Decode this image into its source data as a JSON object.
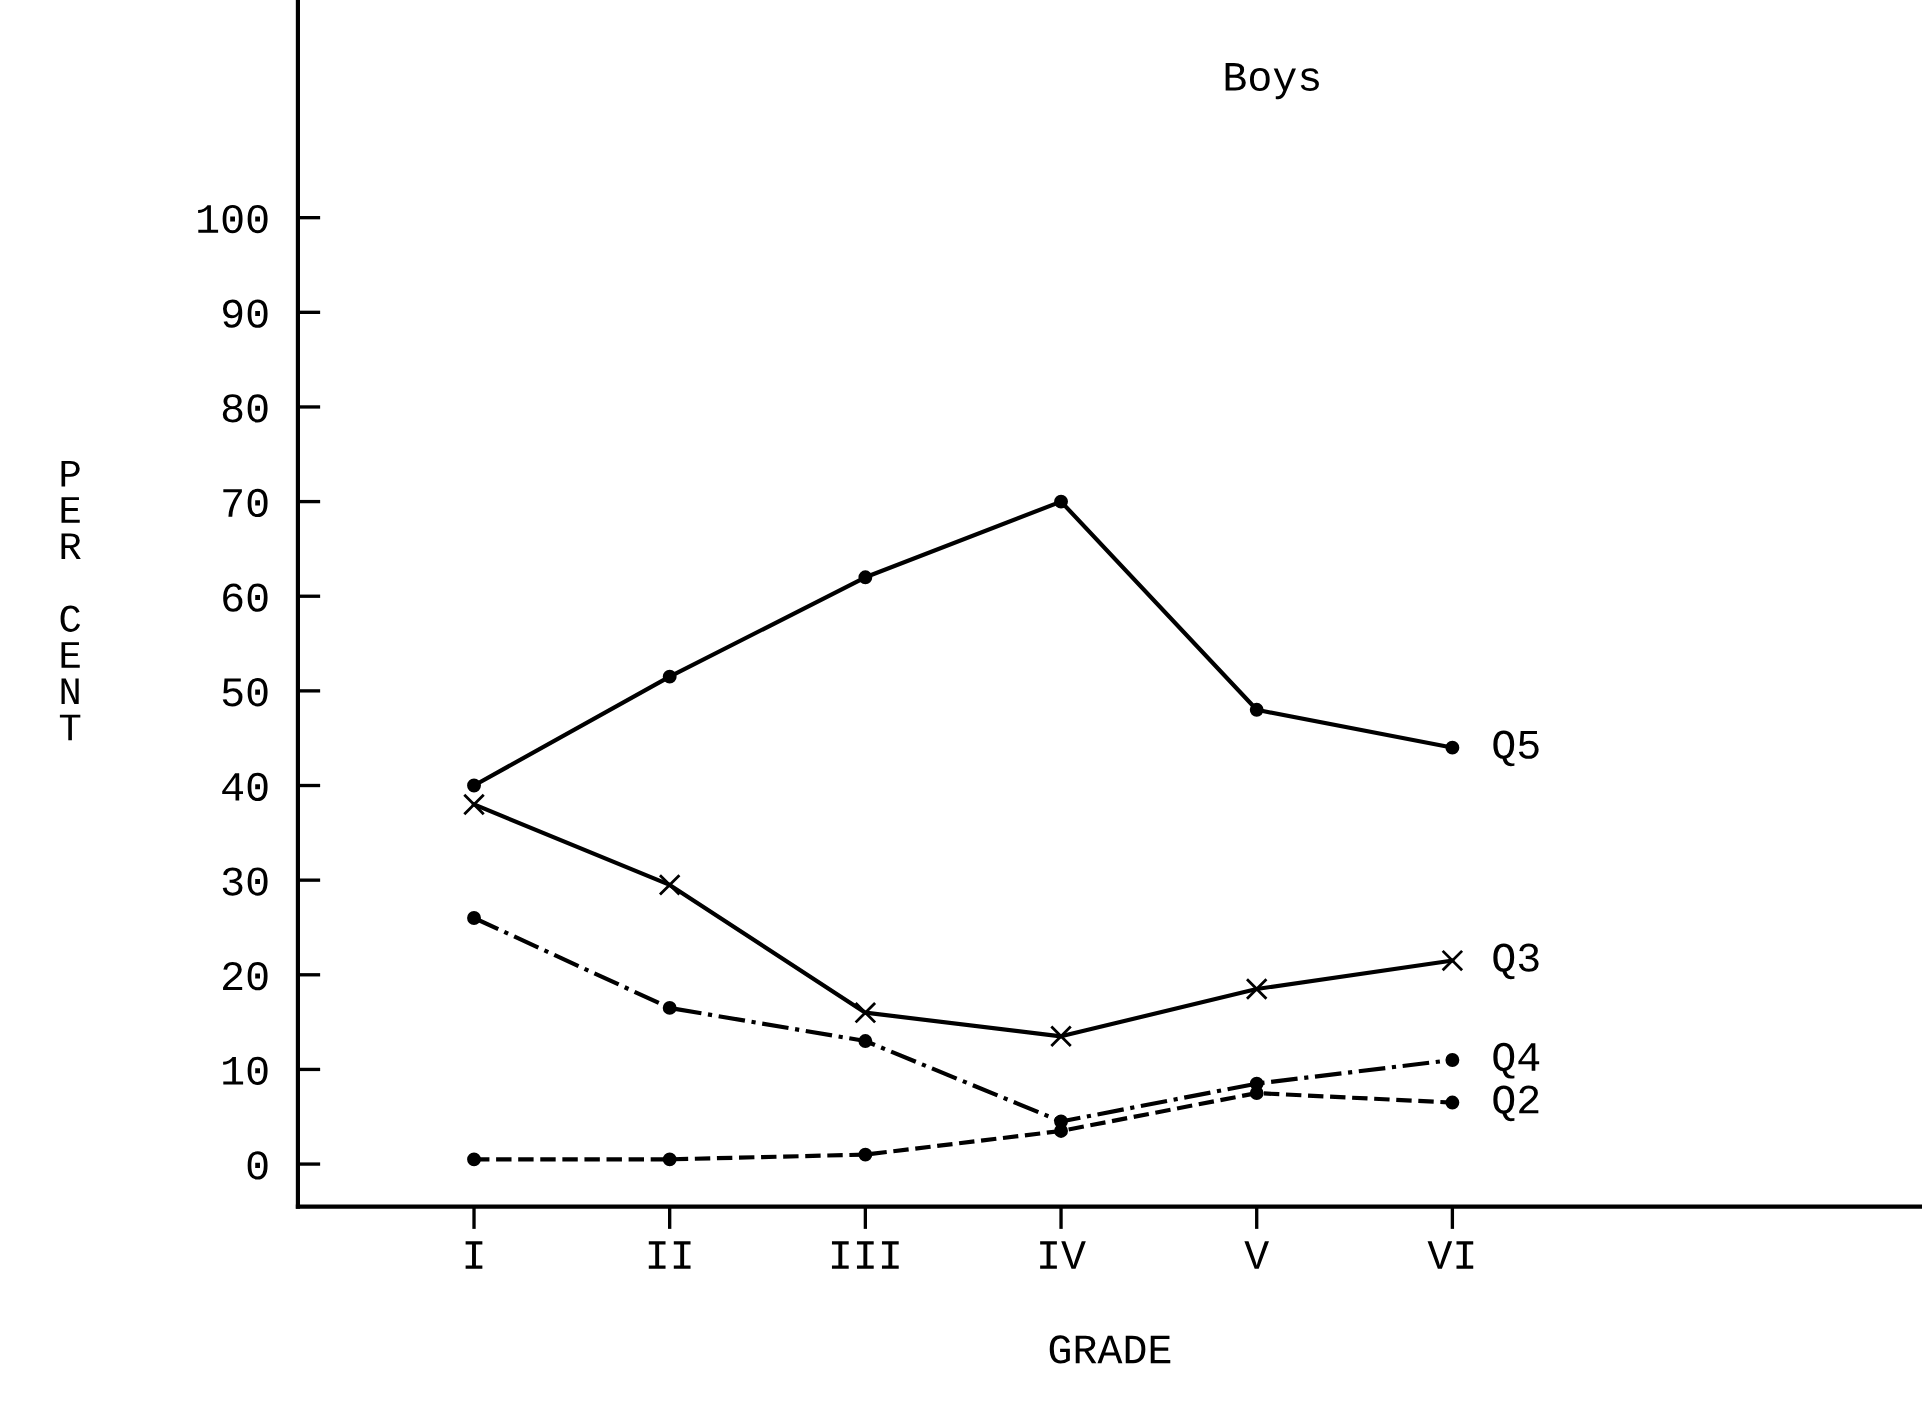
{
  "chart_data": {
    "type": "line",
    "title": "Boys",
    "xlabel": "GRADE",
    "ylabel": "PER CENT",
    "categories": [
      "I",
      "II",
      "III",
      "IV",
      "V",
      "VI"
    ],
    "ylim": [
      -4.5,
      123
    ],
    "yticks": [
      0,
      10,
      20,
      30,
      40,
      50,
      60,
      70,
      80,
      90,
      100
    ],
    "grid": false,
    "legend": false,
    "series": [
      {
        "name": "Q5",
        "color": "#000000",
        "marker": "circle",
        "line_style": "solid",
        "values": [
          40,
          51.5,
          62,
          70,
          48,
          44
        ]
      },
      {
        "name": "Q3",
        "color": "#000000",
        "marker": "cross",
        "line_style": "solid",
        "values": [
          38,
          29.5,
          16,
          13.5,
          18.5,
          21.5
        ]
      },
      {
        "name": "Q4",
        "color": "#000000",
        "marker": "circle",
        "line_style": "dashdot",
        "values": [
          26,
          16.5,
          13,
          4.5,
          8.5,
          11
        ]
      },
      {
        "name": "Q2",
        "color": "#000000",
        "marker": "circle",
        "line_style": "dashed",
        "values": [
          0.5,
          0.5,
          1,
          3.5,
          7.5,
          6.5
        ]
      }
    ]
  }
}
